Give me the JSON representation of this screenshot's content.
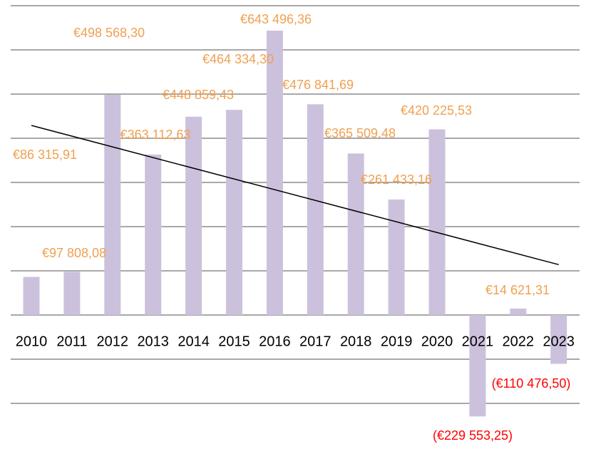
{
  "chart_data": {
    "type": "bar",
    "categories": [
      "2010",
      "2011",
      "2012",
      "2013",
      "2014",
      "2015",
      "2016",
      "2017",
      "2018",
      "2019",
      "2020",
      "2021",
      "2022",
      "2023"
    ],
    "values": [
      86315.91,
      97808.08,
      498568.3,
      363112.63,
      448859.43,
      464334.3,
      643496.36,
      476841.69,
      365509.48,
      261433.16,
      420225.53,
      -229553.25,
      14621.31,
      -110476.5
    ],
    "value_labels": [
      "€86 315,91",
      "€97 808,08",
      "€498 568,30",
      "€363 112,63",
      "€448 859,43",
      "€464 334,30",
      "€643 496,36",
      "€476 841,69",
      "€365 509,48",
      "€261 433,16",
      "€420 225,53",
      "(€229 553,25)",
      "€14 621,31",
      "(€110 476,50)"
    ],
    "color": "#ccc1dc",
    "label_color": "#f0a050",
    "negative_label_color": "#ff0000",
    "trendline": "linear",
    "trendline_color": "#000000",
    "ylim": [
      -200000,
      700000
    ],
    "yticks": [
      -200000,
      -100000,
      0,
      100000,
      200000,
      300000,
      400000,
      500000,
      600000,
      700000
    ],
    "grid": true
  }
}
